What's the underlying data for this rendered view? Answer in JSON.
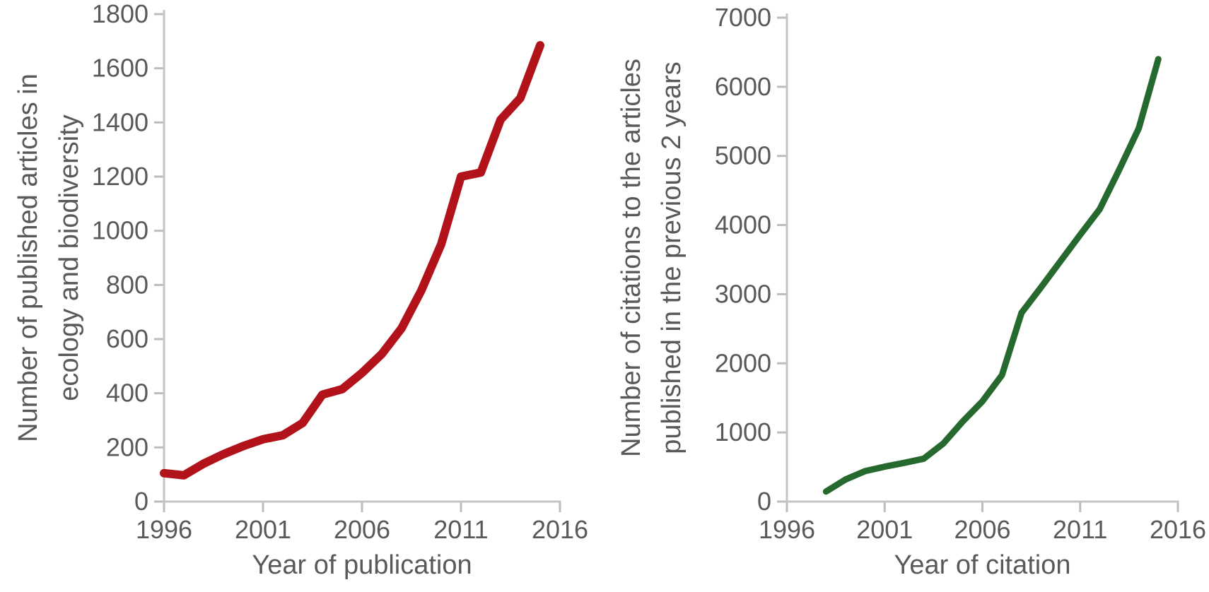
{
  "figure": {
    "background": "#ffffff",
    "text_color": "#595959",
    "axis_color": "#c4c4c4",
    "tick_color": "#bdbdbd"
  },
  "chart_data": [
    {
      "id": "articles",
      "type": "line",
      "title": "",
      "ylabel_line1": "Number of published articles in",
      "ylabel_line2": "ecology and biodiversity",
      "xlabel": "Year of publication",
      "line_color": "#b2121a",
      "line_width": 12,
      "legend": "none",
      "grid": false,
      "xlim": [
        1996,
        2016
      ],
      "ylim": [
        0,
        1800
      ],
      "xticks": [
        1996,
        2001,
        2006,
        2011,
        2016
      ],
      "yticks": [
        0,
        200,
        400,
        600,
        800,
        1000,
        1200,
        1400,
        1600,
        1800
      ],
      "x": [
        1996,
        1997,
        1998,
        1999,
        2000,
        2001,
        2002,
        2003,
        2004,
        2005,
        2006,
        2007,
        2008,
        2009,
        2010,
        2011,
        2012,
        2013,
        2014,
        2015
      ],
      "y": [
        105,
        97,
        140,
        175,
        205,
        230,
        245,
        290,
        395,
        415,
        475,
        545,
        640,
        780,
        950,
        1200,
        1215,
        1410,
        1490,
        1685
      ]
    },
    {
      "id": "citations",
      "type": "line",
      "title": "",
      "ylabel_line1": "Number of citations to the articles",
      "ylabel_line2": "published in the previous 2 years",
      "xlabel": "Year of citation",
      "line_color": "#26692f",
      "line_width": 9,
      "legend": "none",
      "grid": false,
      "xlim": [
        1996,
        2016
      ],
      "ylim": [
        0,
        7000
      ],
      "xticks": [
        1996,
        2001,
        2006,
        2011,
        2016
      ],
      "yticks": [
        0,
        1000,
        2000,
        3000,
        4000,
        5000,
        6000,
        7000
      ],
      "x": [
        1998,
        1999,
        2000,
        2001,
        2002,
        2003,
        2004,
        2005,
        2006,
        2007,
        2008,
        2009,
        2010,
        2011,
        2012,
        2013,
        2014,
        2015
      ],
      "y": [
        145,
        320,
        440,
        505,
        560,
        620,
        840,
        1160,
        1450,
        1830,
        2730,
        3100,
        3480,
        3860,
        4230,
        4800,
        5400,
        6400
      ]
    }
  ]
}
